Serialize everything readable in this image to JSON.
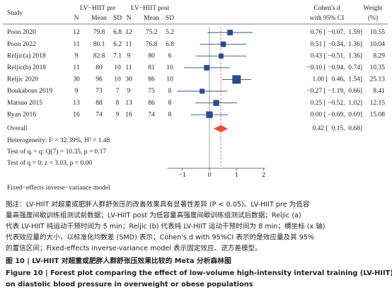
{
  "chart_data": {
    "type": "forest",
    "columns": {
      "study": "Study",
      "group_pre": "LV−HIIT pre",
      "group_post": "LV−HIIT post",
      "sub_pre": [
        "N",
        "Mean",
        "SD"
      ],
      "sub_post": [
        "N",
        "Mean",
        "SD"
      ],
      "effect": [
        "Cohen's d",
        "with 95% CI"
      ],
      "weight": [
        "Weight",
        "(%)"
      ]
    },
    "studies": [
      "Poon 2020",
      "Poon 2022",
      "Reljic(a) 2018",
      "Reljic(b) 2018",
      "Reljic 2020",
      "Boukabous 2019",
      "Matsuo 2015",
      "Ryan 2016"
    ],
    "pre": [
      [
        12,
        79.8,
        6.8
      ],
      [
        11,
        80.1,
        6.2
      ],
      [
        9,
        82.8,
        7.1
      ],
      [
        11,
        80,
        10
      ],
      [
        30,
        96,
        10
      ],
      [
        9,
        73,
        7
      ],
      [
        13,
        88,
        8
      ],
      [
        16,
        74,
        9
      ]
    ],
    "post": [
      [
        12,
        75.2,
        5.2
      ],
      [
        11,
        76.8,
        6.8
      ],
      [
        9,
        80,
        6
      ],
      [
        11,
        81,
        10
      ],
      [
        30,
        86,
        10
      ],
      [
        9,
        75,
        8
      ],
      [
        13,
        86,
        8
      ],
      [
        16,
        74,
        8
      ]
    ],
    "values": [
      0.76,
      0.51,
      0.43,
      -0.1,
      1.0,
      -0.27,
      0.25,
      0.0
    ],
    "ci_low": [
      -0.07,
      -0.34,
      -0.51,
      -0.94,
      0.46,
      -1.19,
      -0.52,
      -0.69
    ],
    "ci_high": [
      1.59,
      1.36,
      1.36,
      0.74,
      1.54,
      0.66,
      1.02,
      0.69
    ],
    "value_labels": [
      "0.76 [ −0.07,  1.59]",
      "0.51 [ −0.34,  1.36]",
      "0.43 [ −0.51,  1.36]",
      "−0.10 [ −0.94,  0.74]",
      "1.00 [  0.46,  1.54]",
      "−0.27 [ −1.19,  0.66]",
      "0.25 [ −0.52,  1.02]",
      "0.00 [ −0.69,  0.69]"
    ],
    "weights": [
      10.55,
      10.04,
      8.29,
      10.35,
      25.13,
      8.41,
      12.15,
      15.08
    ],
    "color": "#2b4c8c",
    "overall": {
      "name": "Overall",
      "value": 0.42,
      "ci_low": 0.15,
      "ci_high": 0.68,
      "value_label": "0.42 [  0.15,  0.68]",
      "color": "#e5502d"
    },
    "stats": [
      "Heterogeneity: I² = 32.39%, H² = 1.48",
      "Test of qᵢ = q: Q(7) = 10.35, p = 0.17",
      "Test of q = 0: z = 3.03, p = 0.00"
    ],
    "xlim": [
      -1.55,
      2.05
    ],
    "xticks": [
      {
        "value": -1,
        "label": "−1"
      },
      0,
      1,
      2
    ],
    "model_note": "Fixed−effects inverse−variance model"
  },
  "caption": {
    "notes": [
      "图注：LV-HIIT 对超重或肥胖人群舒张压的改善效果具有显著性差异 (P < 0.05)。LV-HIIT pre 为低容",
      "量高强度间歇训练组测试前数据；LV-HIIT post 为低容量高强度间歇训练组测试后数据；Reljic (a)",
      "代表 LV-HIIT 纯运动干预时间为 5 min；Reljic (b) 代表纯 LV-HIIT 运动干预时间为 8 min；横坐标 (x 轴)",
      "代表效应量的大小，以标准化均数差 (SMD) 表示；Cohen's d with 95%CI 表示的是效应量及其 95%",
      "的置信区间；Fixed-effects inverse-variance model 表示固定效应、逆方差模型。"
    ],
    "title_cn": "图 10 | LV-HIIT 对超重或肥胖人群舒张压效果比较的 Meta 分析森林图",
    "title_en": [
      "Figure 10 | Forest plot comparing the effect of low-volume high-intensity interval training (LV-HIIT)",
      "on diastolic blood pressure in overweight or obese populations"
    ]
  }
}
